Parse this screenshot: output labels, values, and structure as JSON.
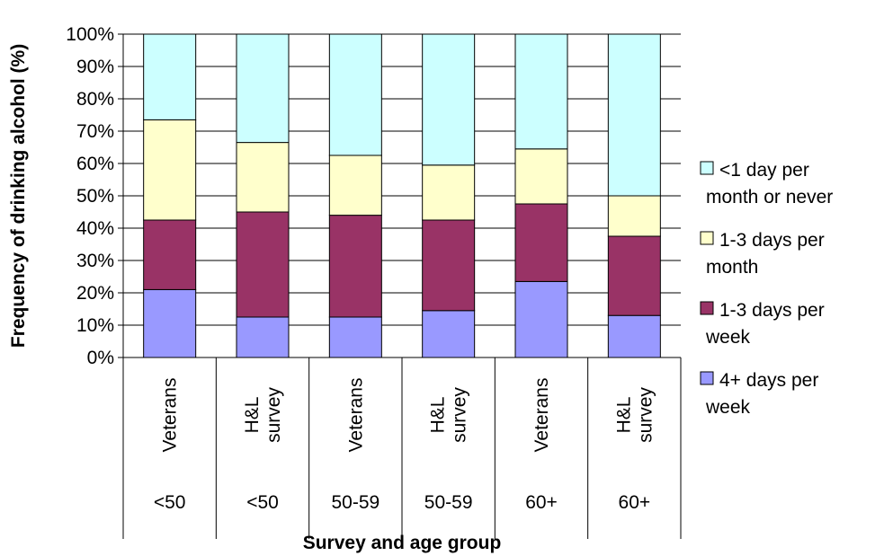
{
  "chart_data": {
    "type": "bar",
    "stacked": true,
    "percent": true,
    "ylabel": "Frequency of drinking alcohol (%)",
    "xlabel": "Survey and age group",
    "ylim": [
      0,
      100
    ],
    "yticks": [
      "0%",
      "10%",
      "20%",
      "30%",
      "40%",
      "50%",
      "60%",
      "70%",
      "80%",
      "90%",
      "100%"
    ],
    "categories": [
      {
        "survey": "Veterans",
        "age": "<50"
      },
      {
        "survey": "H&L survey",
        "age": "<50"
      },
      {
        "survey": "Veterans",
        "age": "50-59"
      },
      {
        "survey": "H&L survey",
        "age": "50-59"
      },
      {
        "survey": "Veterans",
        "age": "60+"
      },
      {
        "survey": "H&L survey",
        "age": "60+"
      }
    ],
    "series": [
      {
        "name": "4+ days per week",
        "color": "#9999ff",
        "values": [
          21,
          12.5,
          12.5,
          14.5,
          23.5,
          13
        ]
      },
      {
        "name": "1-3 days per week",
        "color": "#993366",
        "values": [
          21.5,
          32.5,
          31.5,
          28,
          24,
          24.5
        ]
      },
      {
        "name": "1-3 days per month",
        "color": "#ffffcc",
        "values": [
          31,
          21.5,
          18.5,
          17,
          17,
          12.5
        ]
      },
      {
        "name": "<1 day per month or never",
        "color": "#ccffff",
        "values": [
          26.5,
          33.5,
          37.5,
          40.5,
          35.5,
          50
        ]
      }
    ],
    "legend_position": "right",
    "grid": true
  }
}
